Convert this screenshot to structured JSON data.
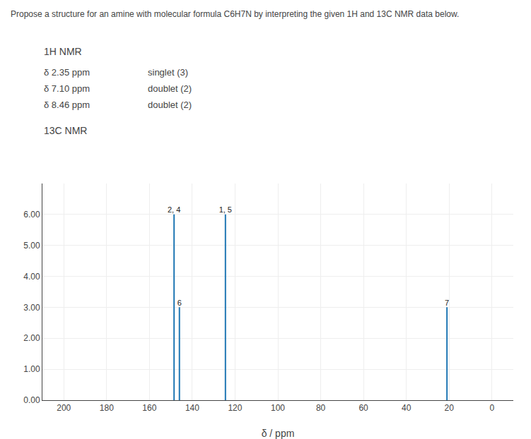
{
  "chart_data": {
    "type": "stem",
    "title": "Propose a structure for an amine with molecular formula C6H7N by interpreting the given 1H and 13C NMR data below.",
    "x": [
      148.5,
      146.0,
      124.5,
      21.0
    ],
    "values": [
      6.0,
      3.0,
      6.0,
      3.0
    ],
    "labels": [
      "2, 4",
      "6",
      "1, 5",
      "7"
    ],
    "xlabel": "δ / ppm",
    "xlim": [
      210,
      -10
    ],
    "ylim": [
      0,
      7
    ],
    "xticks": [
      200,
      180,
      160,
      140,
      120,
      100,
      80,
      60,
      40,
      20,
      0
    ],
    "yticks": [
      {
        "value": 0.0,
        "label": "0.00"
      },
      {
        "value": 1.0,
        "label": "1.00"
      },
      {
        "value": 2.0,
        "label": "2.00"
      },
      {
        "value": 3.0,
        "label": "3.00"
      },
      {
        "value": 4.0,
        "label": "4.00"
      },
      {
        "value": 5.0,
        "label": "5.00"
      },
      {
        "value": 6.0,
        "label": "6.00"
      }
    ],
    "grid": true,
    "annotations": [
      [
        "1H NMR"
      ],
      [
        "δ 2.35 ppm",
        "singlet (3)"
      ],
      [
        "δ 7.10 ppm",
        "doublet (2)"
      ],
      [
        "δ 8.46 ppm",
        "doublet (2)"
      ],
      [
        "13C NMR"
      ]
    ]
  }
}
